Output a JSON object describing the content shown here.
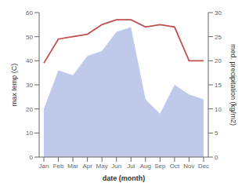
{
  "chart_data": {
    "type": "line",
    "xlabel": "date (month)",
    "ylabel": "max temp (C)",
    "y2label": "med. precipitation (kg/m2)",
    "categories": [
      "Jan",
      "Feb",
      "Mar",
      "Apr",
      "May",
      "Jun",
      "Jul",
      "Aug",
      "Sep",
      "Oct",
      "Nov",
      "Dec"
    ],
    "series": [
      {
        "type": "area",
        "axis": "y2",
        "color": "#b8c4e8",
        "values": [
          10,
          18,
          17,
          21,
          22,
          26,
          27,
          12,
          9,
          15,
          13,
          12
        ]
      },
      {
        "type": "line",
        "color": "#c0504d",
        "values": [
          39,
          49,
          50,
          51,
          55,
          57,
          57,
          54,
          55,
          54,
          40,
          40
        ]
      }
    ],
    "ylim": [
      0,
      60
    ],
    "yticks": [
      0,
      10,
      20,
      30,
      40,
      50,
      60
    ],
    "y2lim": [
      0,
      30
    ],
    "y2ticks": [
      0,
      5,
      10,
      15,
      20,
      25,
      30
    ],
    "grid": false
  }
}
